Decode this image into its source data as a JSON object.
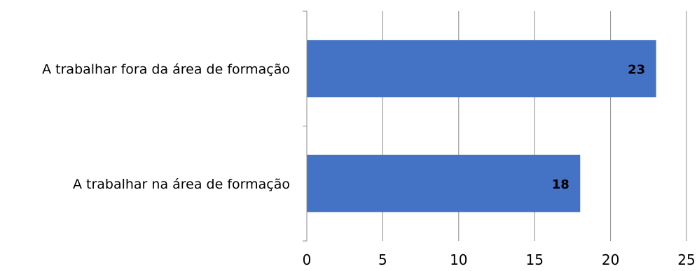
{
  "chart_data": {
    "type": "bar",
    "orientation": "horizontal",
    "categories": [
      "A trabalhar fora da área de formação",
      "A trabalhar na área de formação"
    ],
    "values": [
      23,
      18
    ],
    "data_labels": [
      "23",
      "18"
    ],
    "xlim": [
      0,
      25
    ],
    "x_ticks": [
      "0",
      "5",
      "10",
      "15",
      "20",
      "25"
    ],
    "title": "",
    "xlabel": "",
    "ylabel": "",
    "grid": "vertical",
    "legend": "none",
    "bar_color": "#4472C4",
    "grid_color": "#8c8c8c"
  }
}
